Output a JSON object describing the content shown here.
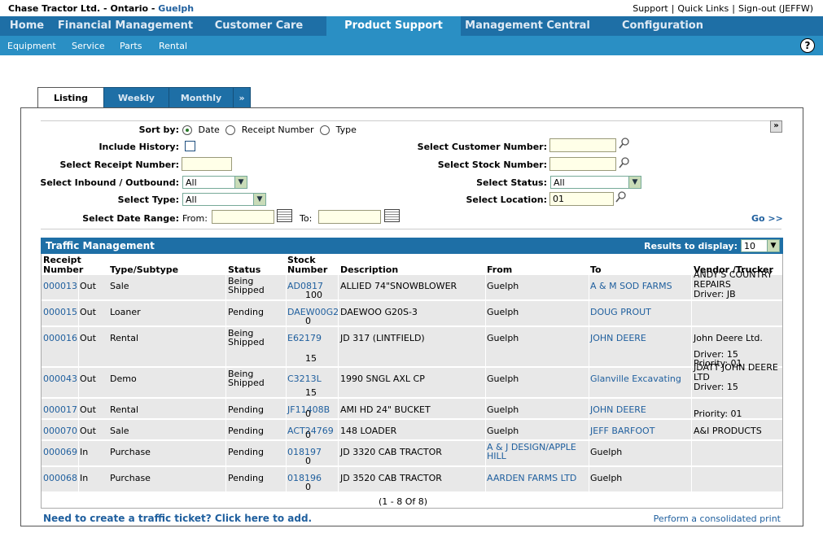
{
  "header": {
    "company": "Chase Tractor Ltd. - Ontario - ",
    "location": "Guelph",
    "links": [
      "Support",
      "Quick Links",
      "Sign-out (JEFFW)"
    ]
  },
  "nav": {
    "main": [
      "Home",
      "Financial Management",
      "Customer Care",
      "Product Support",
      "Management Central",
      "Configuration"
    ],
    "active": "Product Support",
    "sub": [
      "Equipment",
      "Service",
      "Parts",
      "Rental"
    ],
    "help": "?"
  },
  "tabs": [
    "Listing",
    "Weekly",
    "Monthly",
    "»"
  ],
  "filters": {
    "sort_by_label": "Sort by:",
    "sort_options": [
      "Date",
      "Receipt Number",
      "Type"
    ],
    "sort_selected": "Date",
    "include_history_label": "Include History:",
    "receipt_number_label": "Select Receipt Number:",
    "inout_label": "Select  Inbound / Outbound:",
    "inout_value": "All",
    "type_label": "Select Type:",
    "type_value": "All",
    "date_range_label": "Select Date Range:",
    "from_label": "From:",
    "to_label": "To:",
    "customer_number_label": "Select Customer Number:",
    "stock_number_label": "Select Stock Number:",
    "status_label": "Select Status:",
    "status_value": "All",
    "location_label": "Select Location:",
    "location_value": "01",
    "go_label": "Go >>",
    "collapse": "»"
  },
  "table": {
    "title": "Traffic Management",
    "results_label": "Results to display:",
    "results_value": "10",
    "columns": {
      "receipt": [
        "Receipt",
        "Number"
      ],
      "type": "Type/Subtype",
      "status": "Status",
      "stock": [
        "Stock",
        "Number"
      ],
      "description": "Description",
      "from": "From",
      "to": "To",
      "vendor": "Vendor /Trucker"
    },
    "rows": [
      {
        "receipt": "000013",
        "dir": "Out",
        "sub": "Sale",
        "status": [
          "Being",
          "Shipped"
        ],
        "stock": "AD0817",
        "qty": "100",
        "desc": "ALLIED 74\"SNOWBLOWER",
        "from": [
          "Guelph"
        ],
        "from_link": false,
        "to": [
          "A & M SOD FARMS"
        ],
        "to_link": true,
        "vendor": [
          "ANDY'S COUNTRY",
          "REPAIRS",
          "Driver: JB"
        ]
      },
      {
        "receipt": "000015",
        "dir": "Out",
        "sub": "Loaner",
        "status": [
          "Pending"
        ],
        "stock": "DAEW00G2",
        "qty": "0",
        "desc": "DAEWOO G20S-3",
        "from": [
          "Guelph"
        ],
        "from_link": false,
        "to": [
          "DOUG PROUT"
        ],
        "to_link": true,
        "vendor": []
      },
      {
        "receipt": "000016",
        "dir": "Out",
        "sub": "Rental",
        "status": [
          "Being",
          "Shipped"
        ],
        "stock": "E62179",
        "qty": "15",
        "desc": "JD 317 (LINTFIELD)",
        "from": [
          "Guelph"
        ],
        "from_link": false,
        "to": [
          "JOHN DEERE"
        ],
        "to_link": true,
        "vendor": [
          "John Deere Ltd.",
          "Driver: 15",
          "Priority: 01"
        ]
      },
      {
        "receipt": "000043",
        "dir": "Out",
        "sub": "Demo",
        "status": [
          "Being",
          "Shipped"
        ],
        "stock": "C3213L",
        "qty": "15",
        "desc": "1990 SNGL AXL CP",
        "from": [
          "Guelph"
        ],
        "from_link": false,
        "to": [
          "Glanville Excavating"
        ],
        "to_link": true,
        "vendor": [
          "JDATT JOHN DEERE",
          "LTD",
          "Driver: 15"
        ]
      },
      {
        "receipt": "000017",
        "dir": "Out",
        "sub": "Rental",
        "status": [
          "Pending"
        ],
        "stock": "JF11408B",
        "qty": "0",
        "desc": "AMI HD 24\" BUCKET",
        "from": [
          "Guelph"
        ],
        "from_link": false,
        "to": [
          "JOHN DEERE"
        ],
        "to_link": true,
        "vendor": [
          "Priority: 01"
        ]
      },
      {
        "receipt": "000070",
        "dir": "Out",
        "sub": "Sale",
        "status": [
          "Pending"
        ],
        "stock": "ACT24769",
        "qty": "0",
        "desc": "148 LOADER",
        "from": [
          "Guelph"
        ],
        "from_link": false,
        "to": [
          "JEFF BARFOOT"
        ],
        "to_link": true,
        "vendor": [
          "A&I PRODUCTS"
        ]
      },
      {
        "receipt": "000069",
        "dir": "In",
        "sub": "Purchase",
        "status": [
          "Pending"
        ],
        "stock": "018197",
        "qty": "0",
        "desc": "JD 3320 CAB TRACTOR",
        "from": [
          "A & J DESIGN/APPLE",
          "HILL"
        ],
        "from_link": true,
        "to": [
          "Guelph"
        ],
        "to_link": false,
        "vendor": []
      },
      {
        "receipt": "000068",
        "dir": "In",
        "sub": "Purchase",
        "status": [
          "Pending"
        ],
        "stock": "018196",
        "qty": "0",
        "desc": "JD 3520 CAB TRACTOR",
        "from": [
          "AARDEN FARMS LTD"
        ],
        "from_link": true,
        "to": [
          "Guelph"
        ],
        "to_link": false,
        "vendor": []
      }
    ],
    "paging": "(1 - 8 Of 8)"
  },
  "footer": {
    "add_link": "Need to create a traffic ticket? Click here to add.",
    "print_link": "Perform a consolidated print"
  }
}
